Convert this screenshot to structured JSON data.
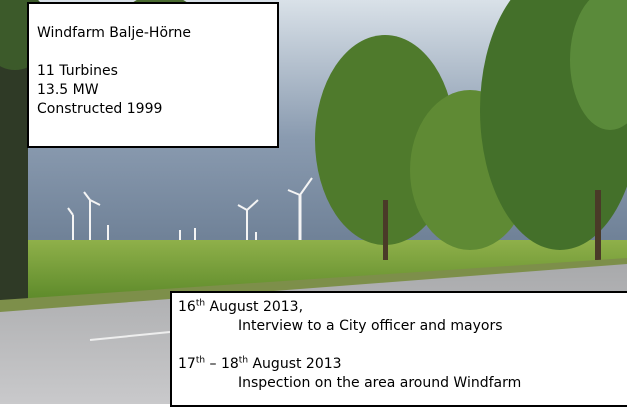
{
  "info_box": {
    "title": "Windfarm Balje-Hörne",
    "lines": [
      "11 Turbines",
      "13.5 MW",
      "Constructed 1999"
    ]
  },
  "events": [
    {
      "date_parts": [
        "16",
        "th",
        " August 2013,"
      ],
      "description": "Interview to a City officer and mayors"
    },
    {
      "date_parts": [
        "17",
        "th",
        " – ",
        "18",
        "th",
        " August 2013"
      ],
      "description": "Inspection on the area around Windfarm"
    }
  ]
}
